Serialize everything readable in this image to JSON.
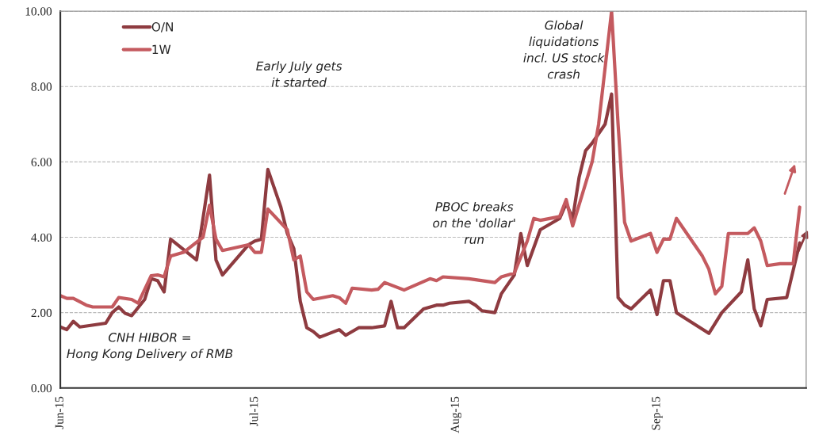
{
  "chart_data": {
    "type": "line",
    "annotations": [
      "Early July gets\nit started",
      "Global\nliquidations\nincl. US stock\ncrash",
      "PBOC breaks\non the 'dollar'\nrun",
      "CNH HIBOR =\nHong Kong Delivery of RMB"
    ],
    "series": [
      {
        "name": "O/N",
        "color": "#8e3b40",
        "x": [
          "2015-06-01",
          "2015-06-02",
          "2015-06-03",
          "2015-06-04",
          "2015-06-08",
          "2015-06-09",
          "2015-06-10",
          "2015-06-11",
          "2015-06-12",
          "2015-06-14",
          "2015-06-15",
          "2015-06-16",
          "2015-06-17",
          "2015-06-18",
          "2015-06-22",
          "2015-06-23",
          "2015-06-24",
          "2015-06-25",
          "2015-06-26",
          "2015-06-30",
          "2015-07-01",
          "2015-07-02",
          "2015-07-03",
          "2015-07-05",
          "2015-07-06",
          "2015-07-07",
          "2015-07-08",
          "2015-07-09",
          "2015-07-10",
          "2015-07-11",
          "2015-07-14",
          "2015-07-15",
          "2015-07-17",
          "2015-07-19",
          "2015-07-21",
          "2015-07-22",
          "2015-07-23",
          "2015-07-24",
          "2015-07-27",
          "2015-07-29",
          "2015-07-30",
          "2015-07-31",
          "2015-08-03",
          "2015-08-04",
          "2015-08-05",
          "2015-08-07",
          "2015-08-08",
          "2015-08-10",
          "2015-08-11",
          "2015-08-12",
          "2015-08-14",
          "2015-08-17",
          "2015-08-18",
          "2015-08-19",
          "2015-08-20",
          "2015-08-21",
          "2015-08-22",
          "2015-08-24",
          "2015-08-25",
          "2015-08-26",
          "2015-08-27",
          "2015-08-28",
          "2015-08-31",
          "2015-09-01",
          "2015-09-02",
          "2015-09-03",
          "2015-09-04",
          "2015-09-09",
          "2015-09-11",
          "2015-09-14",
          "2015-09-15",
          "2015-09-16",
          "2015-09-17",
          "2015-09-18",
          "2015-09-21",
          "2015-09-23"
        ],
        "values": [
          1.62,
          1.55,
          1.77,
          1.62,
          1.72,
          2.0,
          2.15,
          1.98,
          1.92,
          2.35,
          2.9,
          2.85,
          2.55,
          3.95,
          3.4,
          4.5,
          5.65,
          3.4,
          3.0,
          3.8,
          3.9,
          3.95,
          5.8,
          4.8,
          4.1,
          3.7,
          2.3,
          1.6,
          1.5,
          1.35,
          1.55,
          1.4,
          1.6,
          1.6,
          1.65,
          2.3,
          1.6,
          1.6,
          2.1,
          2.2,
          2.2,
          2.25,
          2.3,
          2.2,
          2.05,
          2.0,
          2.5,
          3.0,
          4.1,
          3.25,
          4.2,
          4.5,
          4.9,
          4.5,
          5.6,
          6.3,
          6.5,
          7.0,
          7.8,
          2.4,
          2.2,
          2.1,
          2.6,
          1.95,
          2.85,
          2.85,
          2.0,
          1.45,
          2.0,
          2.55,
          3.4,
          2.1,
          1.65,
          2.35,
          2.4,
          3.85
        ]
      },
      {
        "name": "1W",
        "color": "#c45a5f",
        "x": [
          "2015-06-01",
          "2015-06-02",
          "2015-06-03",
          "2015-06-05",
          "2015-06-06",
          "2015-06-09",
          "2015-06-10",
          "2015-06-12",
          "2015-06-13",
          "2015-06-15",
          "2015-06-16",
          "2015-06-17",
          "2015-06-18",
          "2015-06-20",
          "2015-06-23",
          "2015-06-24",
          "2015-06-25",
          "2015-06-26",
          "2015-06-30",
          "2015-07-01",
          "2015-07-02",
          "2015-07-03",
          "2015-07-06",
          "2015-07-07",
          "2015-07-08",
          "2015-07-09",
          "2015-07-10",
          "2015-07-13",
          "2015-07-14",
          "2015-07-15",
          "2015-07-16",
          "2015-07-19",
          "2015-07-20",
          "2015-07-21",
          "2015-07-24",
          "2015-07-28",
          "2015-07-29",
          "2015-07-30",
          "2015-08-03",
          "2015-08-07",
          "2015-08-08",
          "2015-08-10",
          "2015-08-12",
          "2015-08-13",
          "2015-08-14",
          "2015-08-17",
          "2015-08-18",
          "2015-08-19",
          "2015-08-22",
          "2015-08-23",
          "2015-08-24",
          "2015-08-25",
          "2015-08-26",
          "2015-08-27",
          "2015-08-28",
          "2015-08-31",
          "2015-09-01",
          "2015-09-02",
          "2015-09-03",
          "2015-09-04",
          "2015-09-08",
          "2015-09-09",
          "2015-09-10",
          "2015-09-11",
          "2015-09-12",
          "2015-09-15",
          "2015-09-16",
          "2015-09-17",
          "2015-09-18",
          "2015-09-20",
          "2015-09-22",
          "2015-09-23"
        ],
        "values": [
          2.45,
          2.38,
          2.38,
          2.2,
          2.15,
          2.15,
          2.4,
          2.35,
          2.25,
          2.98,
          3.0,
          2.95,
          3.5,
          3.6,
          4.0,
          4.85,
          3.95,
          3.65,
          3.8,
          3.6,
          3.6,
          4.75,
          4.2,
          3.4,
          3.5,
          2.55,
          2.35,
          2.45,
          2.4,
          2.25,
          2.65,
          2.6,
          2.62,
          2.8,
          2.6,
          2.9,
          2.85,
          2.95,
          2.9,
          2.8,
          2.95,
          3.05,
          3.9,
          4.5,
          4.45,
          4.55,
          5.0,
          4.3,
          6.0,
          7.0,
          8.5,
          10.0,
          7.0,
          4.4,
          3.9,
          4.1,
          3.6,
          3.95,
          3.95,
          4.5,
          3.5,
          3.15,
          2.5,
          2.7,
          4.1,
          4.1,
          4.25,
          3.9,
          3.25,
          3.3,
          3.3,
          4.8
        ]
      }
    ],
    "xlim": [
      "2015-06-01",
      "2015-09-24"
    ],
    "xticks": [
      {
        "value": "2015-06-01",
        "label": "Jun-15"
      },
      {
        "value": "2015-07-01",
        "label": "Jul-15"
      },
      {
        "value": "2015-08-01",
        "label": "Aug-15"
      },
      {
        "value": "2015-09-01",
        "label": "Sep-15"
      }
    ],
    "ylim": [
      0,
      10
    ],
    "yticks": [
      {
        "value": 0,
        "label": "0.00"
      },
      {
        "value": 2,
        "label": "2.00"
      },
      {
        "value": 4,
        "label": "4.00"
      },
      {
        "value": 6,
        "label": "6.00"
      },
      {
        "value": 8,
        "label": "8.00"
      },
      {
        "value": 10,
        "label": "10.00"
      }
    ],
    "grid": "y",
    "legend": "top left",
    "marker": "none",
    "line_style": "solid"
  }
}
